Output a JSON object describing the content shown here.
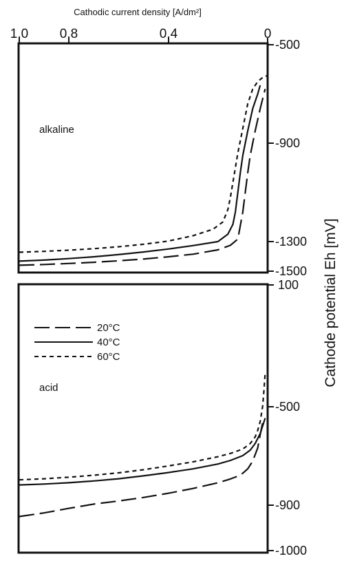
{
  "chart_data": [
    {
      "type": "line",
      "panel": "alkaline",
      "annotation": "alkaline",
      "title": "Cathodic current density [A/dm²]",
      "xlabel": "Cathodic current density [A/dm²]",
      "ylabel": "Cathode potential Eh [mV]",
      "x_ticks": [
        "1,0",
        "0,8",
        "0,4",
        "0"
      ],
      "x_tick_values": [
        1.0,
        0.8,
        0.4,
        0
      ],
      "y_ticks": [
        "-500",
        "-900",
        "-1300",
        "-1500"
      ],
      "y_tick_values": [
        -500,
        -900,
        -1300,
        -1500
      ],
      "xlim": [
        1.0,
        0
      ],
      "ylim": [
        -1500,
        -500
      ],
      "series": [
        {
          "name": "20°C",
          "dash": "long-dash",
          "x": [
            1.0,
            0.9,
            0.8,
            0.7,
            0.6,
            0.5,
            0.4,
            0.3,
            0.2,
            0.15,
            0.12,
            0.1,
            0.09,
            0.08,
            0.07,
            0.05,
            0.03,
            0.01
          ],
          "y": [
            -1460,
            -1455,
            -1448,
            -1440,
            -1430,
            -1418,
            -1403,
            -1385,
            -1356,
            -1325,
            -1290,
            -1180,
            -1100,
            -1020,
            -950,
            -850,
            -760,
            -680
          ]
        },
        {
          "name": "40°C",
          "dash": "solid",
          "x": [
            1.0,
            0.9,
            0.8,
            0.7,
            0.6,
            0.5,
            0.4,
            0.3,
            0.2,
            0.16,
            0.14,
            0.13,
            0.12,
            0.11,
            0.1,
            0.08,
            0.06,
            0.04,
            0.03
          ],
          "y": [
            -1432,
            -1425,
            -1415,
            -1403,
            -1388,
            -1370,
            -1350,
            -1327,
            -1300,
            -1270,
            -1230,
            -1180,
            -1100,
            -1020,
            -950,
            -850,
            -760,
            -700,
            -665
          ]
        },
        {
          "name": "60°C",
          "dash": "short-dash",
          "x": [
            1.0,
            0.9,
            0.8,
            0.7,
            0.6,
            0.5,
            0.4,
            0.3,
            0.22,
            0.18,
            0.16,
            0.15,
            0.14,
            0.13,
            0.12,
            0.1,
            0.08,
            0.06,
            0.04,
            0.02,
            0.0
          ],
          "y": [
            -1372,
            -1366,
            -1358,
            -1348,
            -1335,
            -1318,
            -1298,
            -1276,
            -1250,
            -1220,
            -1170,
            -1120,
            -1060,
            -1000,
            -940,
            -840,
            -740,
            -680,
            -650,
            -633,
            -625
          ]
        }
      ]
    },
    {
      "type": "line",
      "panel": "acid",
      "annotation": "acid",
      "y_ticks": [
        "100",
        "-500",
        "-900",
        "-1000"
      ],
      "y_tick_values": [
        100,
        -500,
        -900,
        -1000
      ],
      "xlim": [
        1.0,
        0
      ],
      "ylim": [
        -1000,
        100
      ],
      "legend": {
        "position": "top-left",
        "entries": [
          {
            "label": "20°C",
            "dash": "long-dash"
          },
          {
            "label": "40°C",
            "dash": "solid"
          },
          {
            "label": "60°C",
            "dash": "short-dash"
          }
        ]
      },
      "series": [
        {
          "name": "20°C",
          "dash": "long-dash",
          "x": [
            1.0,
            0.9,
            0.8,
            0.7,
            0.6,
            0.5,
            0.4,
            0.3,
            0.2,
            0.15,
            0.12,
            0.1,
            0.08,
            0.06,
            0.04,
            0.03,
            0.02
          ],
          "y": [
            -925,
            -917,
            -907,
            -895,
            -881,
            -865,
            -846,
            -824,
            -798,
            -781,
            -768,
            -755,
            -735,
            -700,
            -640,
            -580,
            -525
          ]
        },
        {
          "name": "40°C",
          "dash": "solid",
          "x": [
            1.0,
            0.9,
            0.8,
            0.7,
            0.6,
            0.5,
            0.4,
            0.3,
            0.2,
            0.15,
            0.1,
            0.07,
            0.05,
            0.03,
            0.02,
            0.01
          ],
          "y": [
            -808,
            -804,
            -798,
            -790,
            -780,
            -767,
            -752,
            -735,
            -713,
            -697,
            -675,
            -650,
            -620,
            -575,
            -540,
            -505
          ]
        },
        {
          "name": "60°C",
          "dash": "short-dash",
          "x": [
            1.0,
            0.9,
            0.8,
            0.7,
            0.6,
            0.5,
            0.4,
            0.3,
            0.2,
            0.15,
            0.1,
            0.07,
            0.05,
            0.04,
            0.03,
            0.02,
            0.015,
            0.01
          ],
          "y": [
            -785,
            -780,
            -773,
            -764,
            -753,
            -739,
            -722,
            -703,
            -680,
            -665,
            -645,
            -620,
            -590,
            -560,
            -520,
            -450,
            -380,
            -300
          ]
        }
      ]
    }
  ]
}
